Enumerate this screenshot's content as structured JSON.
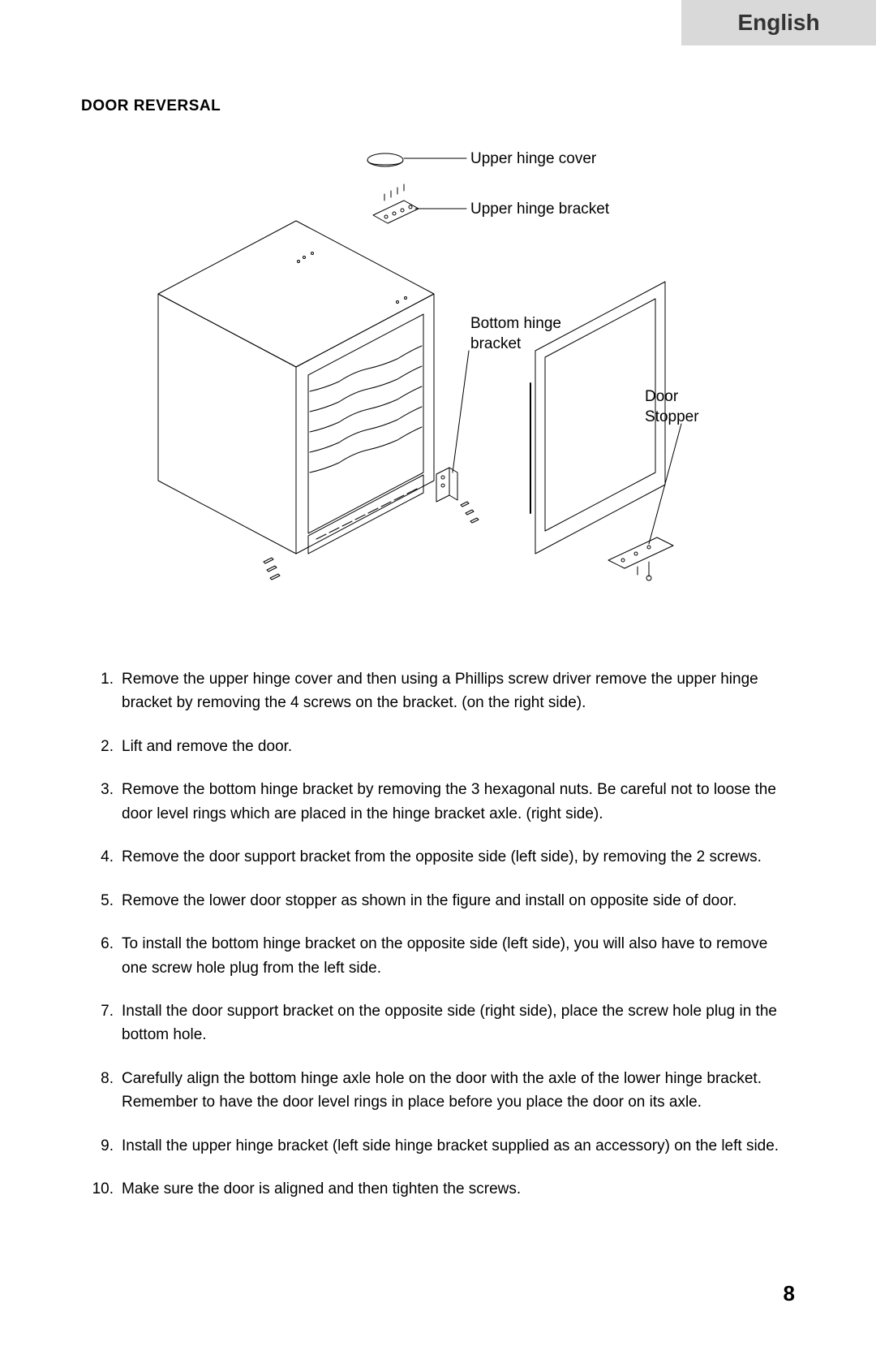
{
  "header": {
    "language": "English"
  },
  "section": {
    "title": "DOOR REVERSAL"
  },
  "diagram": {
    "labels": {
      "upper_hinge_cover": "Upper hinge cover",
      "upper_hinge_bracket": "Upper hinge bracket",
      "bottom_hinge_bracket": "Bottom hinge\nbracket",
      "door_stopper": "Door\nStopper"
    },
    "style": {
      "stroke": "#000000",
      "stroke_width": 1,
      "background": "#ffffff"
    }
  },
  "steps": [
    "Remove the upper hinge cover and then using a Phillips screw driver remove the upper hinge bracket by removing the 4 screws on the bracket. (on the right side).",
    "Lift and remove the door.",
    "Remove the bottom hinge bracket by removing the 3 hexagonal nuts. Be careful not to loose the door level rings which are placed in the hinge bracket axle. (right side).",
    "Remove the door support bracket from the opposite side (left side), by removing the 2 screws.",
    "Remove the lower door stopper as shown in the figure and install on opposite side of door.",
    "To install the bottom hinge bracket on the opposite side (left side), you will also have to remove one screw hole plug from the left side.",
    "Install the door support bracket on the opposite side (right side), place the screw hole plug in the bottom hole.",
    "Carefully align the bottom hinge axle hole on the door with the axle of the lower hinge bracket. Remember to have the door level rings in place before you place the door on its axle.",
    "Install the upper hinge bracket (left side hinge bracket supplied as an accessory) on the left side.",
    "Make sure the door is aligned and then tighten the screws."
  ],
  "page_number": "8"
}
